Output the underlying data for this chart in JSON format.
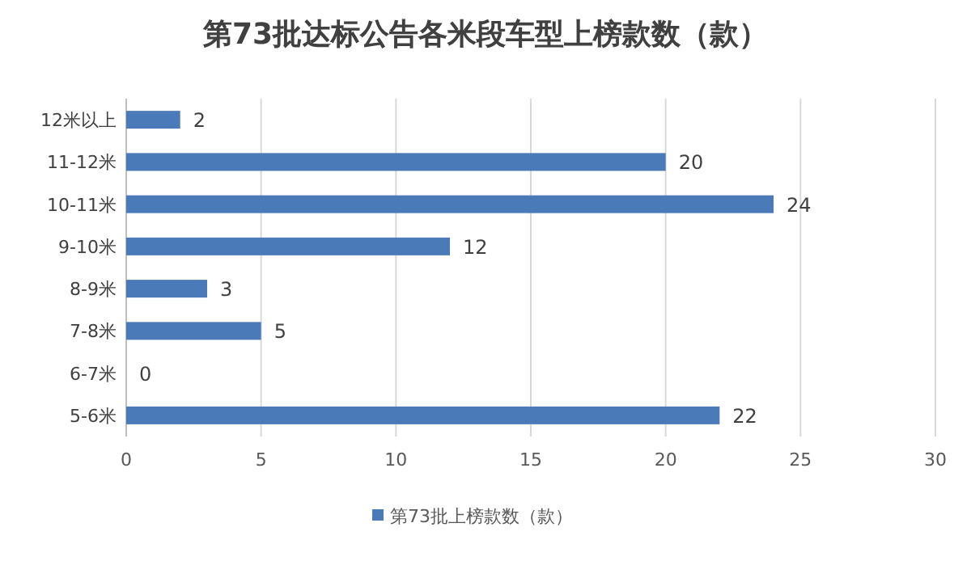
{
  "chart_data": {
    "type": "bar",
    "orientation": "horizontal",
    "title": "第73批达标公告各米段车型上榜款数（款）",
    "categories": [
      "12米以上",
      "11-12米",
      "10-11米",
      "9-10米",
      "8-9米",
      "7-8米",
      "6-7米",
      "5-6米"
    ],
    "series": [
      {
        "name": "第73批上榜款数（款）",
        "color": "#4a7ab8",
        "values": [
          2,
          20,
          24,
          12,
          3,
          5,
          0,
          22
        ]
      }
    ],
    "xlim": [
      0,
      30
    ],
    "xticks": [
      0,
      5,
      10,
      15,
      20,
      25,
      30
    ],
    "grid": "x",
    "legend": "bottom",
    "data_labels": true
  }
}
